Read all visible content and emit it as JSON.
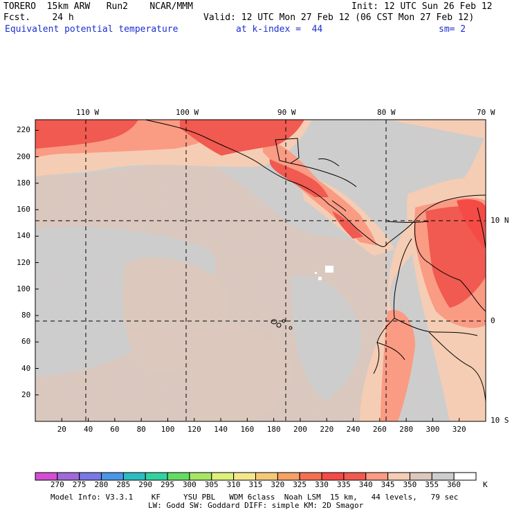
{
  "header": {
    "model": "TORERO  15km ARW   Run2    NCAR/MMM",
    "init": "Init: 12 UTC Sun 26 Feb 12",
    "fcst": "Fcst.    24 h",
    "valid": "Valid: 12 UTC Mon 27 Feb 12 (06 CST Mon 27 Feb 12)",
    "field": "Equivalent potential temperature",
    "level": "at k-index =  44",
    "smooth": "sm= 2"
  },
  "map": {
    "lon_labels": [
      "110 W",
      "100 W",
      "90 W",
      "80 W",
      "70 W"
    ],
    "lat_labels": [
      "10 N",
      "0",
      "10 S"
    ],
    "x_ticks": [
      "20",
      "40",
      "60",
      "80",
      "100",
      "120",
      "140",
      "160",
      "180",
      "200",
      "220",
      "240",
      "260",
      "280",
      "300",
      "320"
    ],
    "y_ticks": [
      "220",
      "200",
      "180",
      "160",
      "140",
      "120",
      "100",
      "80",
      "60",
      "40",
      "20"
    ]
  },
  "colorbar": {
    "labels": [
      "270",
      "275",
      "280",
      "285",
      "290",
      "295",
      "300",
      "305",
      "310",
      "315",
      "320",
      "325",
      "330",
      "335",
      "340",
      "345",
      "350",
      "355",
      "360"
    ],
    "unit": "K",
    "colors": [
      "#d24fd2",
      "#a069d8",
      "#7878e6",
      "#4b96e6",
      "#2dbcc0",
      "#32d2a0",
      "#64dc64",
      "#a6e664",
      "#dcf07a",
      "#f5e68c",
      "#f5c878",
      "#f5a064",
      "#f57050",
      "#f54b46",
      "#f05a50",
      "#fa9b84",
      "#f5cdb4",
      "#dcc8bc",
      "#cdcdcd",
      "#ffffff"
    ]
  },
  "footer": {
    "line1": "Model Info: V3.3.1    KF     YSU PBL   WDM 6class  Noah LSM  15 km,   44 levels,   79 sec",
    "line2": "LW: Godd SW: Goddard DIFF: simple KM: 2D Smagor"
  }
}
